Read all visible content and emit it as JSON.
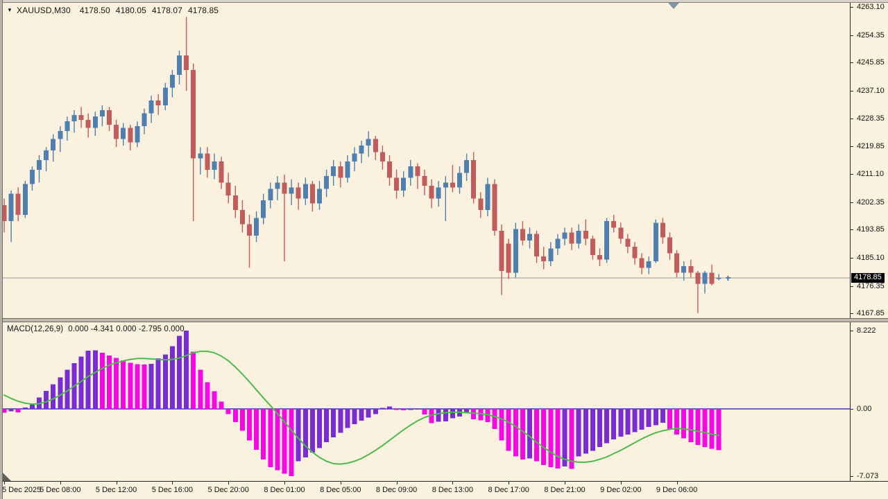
{
  "header": {
    "symbol": "XAUUSD,M30",
    "open": "4178.50",
    "high": "4180.05",
    "low": "4178.07",
    "close": "4178.85"
  },
  "macd_panel": {
    "title": "MACD(12,26,9)",
    "readout": "0.000 -4.341 0.000 -2.795 0.000"
  },
  "price_axis": {
    "current_price": "4178.85"
  },
  "chart_data": {
    "type": "candlestick",
    "title": "XAUUSD M30 with MACD(12,26,9)",
    "symbol": "XAUUSD",
    "timeframe": "M30",
    "grid": false,
    "price_axis_values": [
      4263.1,
      4254.35,
      4245.85,
      4237.1,
      4228.35,
      4219.85,
      4211.1,
      4202.35,
      4193.85,
      4185.1,
      4176.35,
      4167.85
    ],
    "price_ylim": [
      4165.0,
      4264.5
    ],
    "current_price": 4178.85,
    "time_labels": [
      {
        "label": "5 Dec 2025",
        "bar": 0
      },
      {
        "label": "5 Dec 08:00",
        "bar": 8
      },
      {
        "label": "5 Dec 12:00",
        "bar": 16
      },
      {
        "label": "5 Dec 16:00",
        "bar": 24
      },
      {
        "label": "5 Dec 20:00",
        "bar": 32
      },
      {
        "label": "8 Dec 01:00",
        "bar": 40
      },
      {
        "label": "8 Dec 05:00",
        "bar": 48
      },
      {
        "label": "8 Dec 09:00",
        "bar": 56
      },
      {
        "label": "8 Dec 13:00",
        "bar": 64
      },
      {
        "label": "8 Dec 17:00",
        "bar": 72
      },
      {
        "label": "8 Dec 21:00",
        "bar": 80
      },
      {
        "label": "9 Dec 02:00",
        "bar": 88
      },
      {
        "label": "9 Dec 06:00",
        "bar": 96
      }
    ],
    "candles_ohlc": [
      [
        4201.5,
        4203.5,
        4193.0,
        4196.5
      ],
      [
        4196.5,
        4206.0,
        4190.0,
        4205.0
      ],
      [
        4205.0,
        4207.0,
        4196.5,
        4198.5
      ],
      [
        4198.5,
        4209.0,
        4197.5,
        4208.0
      ],
      [
        4208.0,
        4213.5,
        4206.0,
        4212.5
      ],
      [
        4212.5,
        4217.0,
        4208.5,
        4215.5
      ],
      [
        4215.5,
        4219.5,
        4212.0,
        4218.5
      ],
      [
        4218.5,
        4223.5,
        4215.0,
        4222.0
      ],
      [
        4222.0,
        4226.0,
        4218.0,
        4224.5
      ],
      [
        4224.5,
        4229.0,
        4221.5,
        4227.5
      ],
      [
        4227.5,
        4231.0,
        4224.0,
        4229.5
      ],
      [
        4229.5,
        4232.0,
        4225.5,
        4228.0
      ],
      [
        4228.0,
        4230.0,
        4222.5,
        4225.5
      ],
      [
        4225.5,
        4230.5,
        4223.0,
        4229.0
      ],
      [
        4229.0,
        4232.5,
        4226.0,
        4231.0
      ],
      [
        4231.0,
        4232.0,
        4224.5,
        4226.5
      ],
      [
        4226.5,
        4228.0,
        4219.5,
        4222.0
      ],
      [
        4222.0,
        4227.0,
        4220.0,
        4225.5
      ],
      [
        4225.5,
        4226.5,
        4218.5,
        4221.0
      ],
      [
        4221.0,
        4227.5,
        4219.5,
        4226.0
      ],
      [
        4226.0,
        4231.5,
        4223.5,
        4230.0
      ],
      [
        4230.0,
        4235.5,
        4227.0,
        4234.0
      ],
      [
        4234.0,
        4236.0,
        4229.5,
        4232.5
      ],
      [
        4232.5,
        4239.5,
        4231.0,
        4238.0
      ],
      [
        4238.0,
        4243.5,
        4235.0,
        4242.0
      ],
      [
        4242.0,
        4249.5,
        4239.0,
        4248.0
      ],
      [
        4248.0,
        4260.0,
        4237.0,
        4243.5
      ],
      [
        4243.5,
        4245.5,
        4196.5,
        4216.0
      ],
      [
        4216.0,
        4219.5,
        4211.0,
        4217.5
      ],
      [
        4217.5,
        4219.5,
        4210.0,
        4212.5
      ],
      [
        4212.5,
        4217.5,
        4209.5,
        4215.0
      ],
      [
        4215.0,
        4216.5,
        4206.5,
        4208.5
      ],
      [
        4208.5,
        4211.5,
        4202.0,
        4204.5
      ],
      [
        4204.5,
        4207.5,
        4197.5,
        4200.0
      ],
      [
        4200.0,
        4203.0,
        4193.0,
        4195.5
      ],
      [
        4195.5,
        4198.5,
        4182.0,
        4192.0
      ],
      [
        4192.0,
        4199.5,
        4190.0,
        4197.5
      ],
      [
        4197.5,
        4205.0,
        4195.5,
        4203.0
      ],
      [
        4203.0,
        4208.5,
        4200.5,
        4206.5
      ],
      [
        4206.5,
        4210.5,
        4203.0,
        4208.5
      ],
      [
        4208.5,
        4211.0,
        4184.0,
        4205.0
      ],
      [
        4205.0,
        4209.5,
        4201.5,
        4207.0
      ],
      [
        4207.0,
        4208.5,
        4200.0,
        4203.5
      ],
      [
        4203.5,
        4210.0,
        4201.5,
        4208.0
      ],
      [
        4208.0,
        4209.0,
        4199.5,
        4202.0
      ],
      [
        4202.0,
        4209.0,
        4200.0,
        4206.5
      ],
      [
        4206.5,
        4212.5,
        4204.0,
        4210.5
      ],
      [
        4210.5,
        4215.5,
        4207.5,
        4213.5
      ],
      [
        4213.5,
        4215.0,
        4207.0,
        4210.0
      ],
      [
        4210.0,
        4217.0,
        4208.5,
        4215.0
      ],
      [
        4215.0,
        4219.5,
        4212.0,
        4217.5
      ],
      [
        4217.5,
        4221.5,
        4214.5,
        4220.0
      ],
      [
        4220.0,
        4224.5,
        4216.5,
        4222.0
      ],
      [
        4222.0,
        4223.0,
        4215.5,
        4218.0
      ],
      [
        4218.0,
        4220.0,
        4212.5,
        4215.0
      ],
      [
        4215.0,
        4217.0,
        4207.5,
        4210.0
      ],
      [
        4210.0,
        4212.5,
        4203.5,
        4206.0
      ],
      [
        4206.0,
        4212.0,
        4204.0,
        4210.0
      ],
      [
        4210.0,
        4215.5,
        4207.5,
        4213.5
      ],
      [
        4213.5,
        4214.5,
        4206.5,
        4210.5
      ],
      [
        4210.5,
        4212.5,
        4204.5,
        4207.5
      ],
      [
        4207.5,
        4209.5,
        4200.5,
        4203.5
      ],
      [
        4203.5,
        4209.0,
        4201.0,
        4207.0
      ],
      [
        4207.0,
        4210.5,
        4196.5,
        4208.5
      ],
      [
        4208.5,
        4214.0,
        4205.5,
        4207.0
      ],
      [
        4207.0,
        4213.5,
        4205.0,
        4211.5
      ],
      [
        4211.5,
        4217.5,
        4209.0,
        4215.5
      ],
      [
        4215.5,
        4218.0,
        4202.0,
        4203.5
      ],
      [
        4203.5,
        4205.5,
        4197.5,
        4200.0
      ],
      [
        4200.0,
        4210.0,
        4198.0,
        4208.0
      ],
      [
        4208.0,
        4209.5,
        4192.0,
        4193.5
      ],
      [
        4193.5,
        4195.5,
        4173.5,
        4181.0
      ],
      [
        4189.5,
        4191.0,
        4178.5,
        4180.5
      ],
      [
        4180.5,
        4196.0,
        4179.0,
        4194.0
      ],
      [
        4194.0,
        4196.5,
        4189.0,
        4190.5
      ],
      [
        4190.5,
        4194.5,
        4188.0,
        4192.5
      ],
      [
        4192.5,
        4193.5,
        4183.5,
        4185.5
      ],
      [
        4185.5,
        4188.5,
        4181.5,
        4184.0
      ],
      [
        4184.0,
        4190.0,
        4182.5,
        4188.0
      ],
      [
        4188.0,
        4192.5,
        4186.0,
        4191.0
      ],
      [
        4191.0,
        4194.5,
        4189.0,
        4193.0
      ],
      [
        4193.0,
        4194.5,
        4187.5,
        4189.5
      ],
      [
        4189.5,
        4195.5,
        4188.0,
        4193.5
      ],
      [
        4193.5,
        4197.0,
        4189.0,
        4191.0
      ],
      [
        4191.0,
        4192.0,
        4184.5,
        4186.0
      ],
      [
        4186.0,
        4188.0,
        4182.5,
        4184.5
      ],
      [
        4184.5,
        4197.5,
        4183.5,
        4196.5
      ],
      [
        4196.5,
        4198.5,
        4193.0,
        4194.5
      ],
      [
        4194.5,
        4196.0,
        4189.5,
        4191.0
      ],
      [
        4191.0,
        4192.5,
        4186.5,
        4188.5
      ],
      [
        4188.5,
        4190.0,
        4183.0,
        4185.0
      ],
      [
        4185.0,
        4186.5,
        4180.0,
        4182.0
      ],
      [
        4182.0,
        4185.5,
        4180.0,
        4184.0
      ],
      [
        4184.0,
        4197.0,
        4183.5,
        4196.0
      ],
      [
        4196.0,
        4197.5,
        4189.5,
        4191.5
      ],
      [
        4191.5,
        4193.0,
        4184.5,
        4186.5
      ],
      [
        4186.5,
        4187.5,
        4179.0,
        4180.5
      ],
      [
        4180.5,
        4184.0,
        4178.0,
        4182.5
      ],
      [
        4182.5,
        4184.5,
        4179.0,
        4180.5
      ],
      [
        4180.5,
        4181.0,
        4167.9,
        4177.0
      ],
      [
        4177.0,
        4181.0,
        4174.0,
        4180.5
      ],
      [
        4180.5,
        4183.0,
        4176.5,
        4177.0
      ],
      [
        4178.5,
        4180.05,
        4178.07,
        4178.85
      ]
    ],
    "macd": {
      "title": "MACD(12,26,9)",
      "axis_values": [
        8.222,
        0.0,
        -7.073
      ],
      "axis_labels": [
        "8.222",
        "0.00",
        "-7.073"
      ],
      "ylim": [
        -7.5,
        9.0
      ],
      "histogram": [
        -0.4,
        -0.25,
        -0.35,
        0.15,
        0.55,
        1.2,
        1.9,
        2.6,
        3.3,
        4.1,
        4.8,
        5.5,
        6.1,
        6.15,
        5.9,
        5.6,
        5.35,
        5.1,
        4.85,
        4.7,
        4.65,
        4.75,
        5.3,
        5.7,
        6.6,
        7.7,
        8.222,
        6.0,
        4.1,
        2.8,
        1.85,
        0.75,
        -0.55,
        -1.4,
        -2.3,
        -3.3,
        -4.3,
        -5.3,
        -6.1,
        -6.45,
        -6.8,
        -7.073,
        -5.5,
        -5.1,
        -4.6,
        -4.1,
        -3.5,
        -3.0,
        -2.5,
        -2.0,
        -1.6,
        -1.25,
        -0.9,
        -0.55,
        0.1,
        0.25,
        -0.1,
        -0.15,
        -0.1,
        -0.05,
        -0.6,
        -1.5,
        -1.35,
        -1.3,
        -1.0,
        -0.8,
        -0.4,
        -1.1,
        -1.2,
        -1.4,
        -2.1,
        -3.3,
        -4.4,
        -5.0,
        -5.3,
        -5.2,
        -5.5,
        -5.9,
        -6.1,
        -6.25,
        -6.05,
        -6.3,
        -5.0,
        -4.7,
        -4.4,
        -4.0,
        -3.6,
        -3.2,
        -2.9,
        -2.7,
        -2.45,
        -2.2,
        -1.9,
        -1.7,
        -1.45,
        -2.1,
        -2.7,
        -3.1,
        -3.5,
        -3.8,
        -4.0,
        -4.2,
        -4.341
      ],
      "signal": [
        1.45,
        1.1,
        0.8,
        0.6,
        0.5,
        0.55,
        0.75,
        1.05,
        1.45,
        1.9,
        2.4,
        2.9,
        3.4,
        3.85,
        4.25,
        4.6,
        4.85,
        5.05,
        5.2,
        5.3,
        5.3,
        5.25,
        5.2,
        5.15,
        5.2,
        5.35,
        5.6,
        5.9,
        6.05,
        6.05,
        5.9,
        5.55,
        5.05,
        4.4,
        3.65,
        2.85,
        2.0,
        1.15,
        0.35,
        -0.5,
        -1.35,
        -2.25,
        -3.1,
        -3.9,
        -4.55,
        -5.1,
        -5.5,
        -5.75,
        -5.8,
        -5.7,
        -5.5,
        -5.2,
        -4.8,
        -4.35,
        -3.85,
        -3.3,
        -2.75,
        -2.2,
        -1.7,
        -1.25,
        -0.9,
        -0.65,
        -0.5,
        -0.4,
        -0.35,
        -0.35,
        -0.4,
        -0.45,
        -0.5,
        -0.6,
        -0.8,
        -1.05,
        -1.4,
        -1.85,
        -2.35,
        -2.9,
        -3.5,
        -4.05,
        -4.55,
        -5.0,
        -5.3,
        -5.5,
        -5.6,
        -5.6,
        -5.5,
        -5.3,
        -5.05,
        -4.7,
        -4.35,
        -3.95,
        -3.55,
        -3.15,
        -2.8,
        -2.5,
        -2.3,
        -2.15,
        -2.05,
        -2.1,
        -2.2,
        -2.35,
        -2.5,
        -2.65,
        -2.795
      ]
    },
    "colors": {
      "background": "#faf1de",
      "bull": "#4e7fb0",
      "bear": "#c25b5b",
      "histogram_rising": "#7b2bd2",
      "histogram_falling": "#f707e3",
      "signal_line": "#4cbb4c",
      "zero_line": "#6a66b8",
      "current_price_line": "#9a9a9a",
      "price_tag_bg": "#000000",
      "price_tag_text": "#ffffff",
      "axis_text": "#111111"
    }
  }
}
